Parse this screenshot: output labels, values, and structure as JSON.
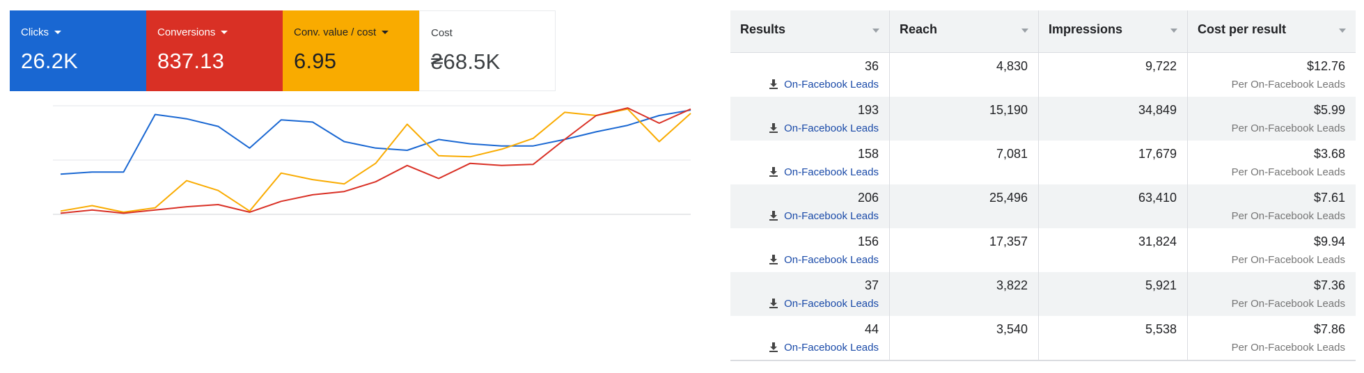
{
  "cards": [
    {
      "label": "Clicks",
      "value": "26.2K",
      "color": "#1967d2",
      "has_dropdown": true
    },
    {
      "label": "Conversions",
      "value": "837.13",
      "color": "#d93025",
      "has_dropdown": true
    },
    {
      "label": "Conv. value / cost",
      "value": "6.95",
      "color": "#f9ab00",
      "has_dropdown": true
    },
    {
      "label": "Cost",
      "value": "₴68.5K",
      "color": "#ffffff",
      "has_dropdown": false
    }
  ],
  "chart_data": {
    "type": "line",
    "title": "",
    "xlabel": "",
    "ylabel": "",
    "grid": true,
    "legend": "none",
    "ylim": [
      0,
      1
    ],
    "series": [
      {
        "color": "#1967d2",
        "values": [
          0.37,
          0.39,
          0.39,
          0.92,
          0.88,
          0.81,
          0.61,
          0.87,
          0.85,
          0.67,
          0.61,
          0.59,
          0.69,
          0.65,
          0.63,
          0.63,
          0.69,
          0.76,
          0.82,
          0.91,
          0.96
        ]
      },
      {
        "color": "#f9ab00",
        "values": [
          0.03,
          0.08,
          0.02,
          0.06,
          0.31,
          0.22,
          0.03,
          0.38,
          0.32,
          0.28,
          0.47,
          0.83,
          0.54,
          0.53,
          0.6,
          0.7,
          0.94,
          0.91,
          0.97,
          0.67,
          0.93
        ]
      },
      {
        "color": "#d93025",
        "values": [
          0.01,
          0.04,
          0.01,
          0.04,
          0.07,
          0.09,
          0.02,
          0.12,
          0.18,
          0.21,
          0.3,
          0.45,
          0.33,
          0.47,
          0.45,
          0.46,
          0.69,
          0.91,
          0.98,
          0.84,
          0.97
        ]
      }
    ]
  },
  "table": {
    "columns": [
      "Results",
      "Reach",
      "Impressions",
      "Cost per result"
    ],
    "rows": [
      {
        "results": "36",
        "result_type": "On-Facebook Leads",
        "reach": "4,830",
        "impressions": "9,722",
        "cost": "$12.76",
        "cost_sub": "Per On-Facebook Leads"
      },
      {
        "results": "193",
        "result_type": "On-Facebook Leads",
        "reach": "15,190",
        "impressions": "34,849",
        "cost": "$5.99",
        "cost_sub": "Per On-Facebook Leads"
      },
      {
        "results": "158",
        "result_type": "On-Facebook Leads",
        "reach": "7,081",
        "impressions": "17,679",
        "cost": "$3.68",
        "cost_sub": "Per On-Facebook Leads"
      },
      {
        "results": "206",
        "result_type": "On-Facebook Leads",
        "reach": "25,496",
        "impressions": "63,410",
        "cost": "$7.61",
        "cost_sub": "Per On-Facebook Leads"
      },
      {
        "results": "156",
        "result_type": "On-Facebook Leads",
        "reach": "17,357",
        "impressions": "31,824",
        "cost": "$9.94",
        "cost_sub": "Per On-Facebook Leads"
      },
      {
        "results": "37",
        "result_type": "On-Facebook Leads",
        "reach": "3,822",
        "impressions": "5,921",
        "cost": "$7.36",
        "cost_sub": "Per On-Facebook Leads"
      },
      {
        "results": "44",
        "result_type": "On-Facebook Leads",
        "reach": "3,540",
        "impressions": "5,538",
        "cost": "$7.86",
        "cost_sub": "Per On-Facebook Leads"
      }
    ]
  }
}
